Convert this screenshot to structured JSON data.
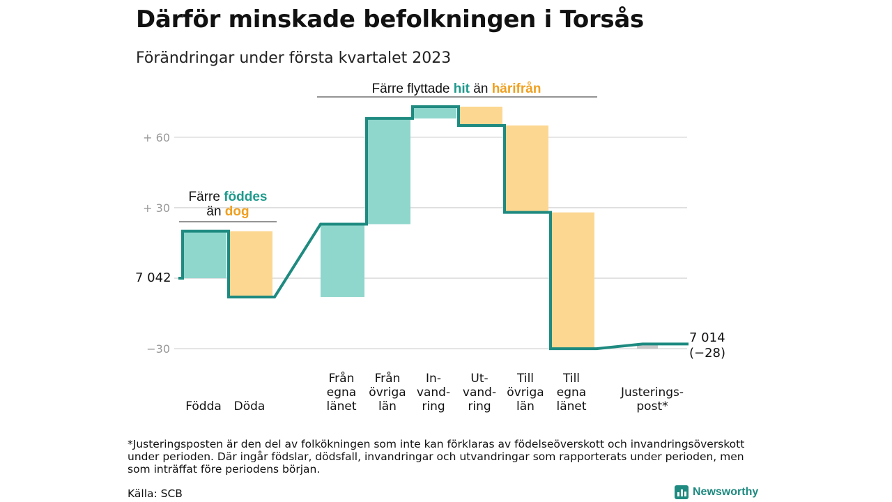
{
  "title": "Därför minskade befolkningen i Torsås",
  "subtitle": "Förändringar under första kvartalet 2023",
  "footnote": "*Justeringsposten är den del av folkökningen som inte kan förklaras av födelseöverskott och invandringsöverskott under perioden. Där ingår födslar, dödsfall, invandringar och utvandringar som rapporterats under perioden, men som inträffat före periodens början.",
  "source": "Källa: SCB",
  "brand": "Newsworthy",
  "colors": {
    "line": "#1e8a80",
    "increase": "#8fd6cd",
    "decrease": "#fcd791",
    "adjustment": "#c8c8c8",
    "accent_teal": "#1e9a8c",
    "accent_orange": "#f0a020",
    "grid": "#d9d9d9",
    "tick": "#999999"
  },
  "chart_data": {
    "type": "waterfall",
    "start_value": 7042,
    "start_label": "7 042",
    "end_value": 7014,
    "end_label": "7 014",
    "end_change_label": "(−28)",
    "y_ticks": [
      {
        "value": 60,
        "label": "+ 60"
      },
      {
        "value": 30,
        "label": "+ 30"
      },
      {
        "value": -30,
        "label": "−30"
      }
    ],
    "ylim": [
      -30,
      73
    ],
    "steps": [
      {
        "label_lines": [
          "Födda"
        ],
        "change": 20
      },
      {
        "label_lines": [
          "Döda"
        ],
        "change": -28
      },
      {
        "label_lines": [
          "Från",
          "egna",
          "länet"
        ],
        "change": 31
      },
      {
        "label_lines": [
          "Från",
          "övriga",
          "län"
        ],
        "change": 45
      },
      {
        "label_lines": [
          "In-",
          "vand-",
          "ring"
        ],
        "change": 5
      },
      {
        "label_lines": [
          "Ut-",
          "vand-",
          "ring"
        ],
        "change": -8
      },
      {
        "label_lines": [
          "Till",
          "övriga",
          "län"
        ],
        "change": -37
      },
      {
        "label_lines": [
          "Till",
          "egna",
          "länet"
        ],
        "change": -58
      },
      {
        "label_lines": [
          "Justerings-",
          "post*"
        ],
        "change": 2
      }
    ],
    "annotations": [
      {
        "lines": [
          [
            {
              "text": "Färre "
            },
            {
              "text": "föddes",
              "color": "teal"
            }
          ],
          [
            {
              "text": "än "
            },
            {
              "text": "dog",
              "color": "orange"
            }
          ]
        ]
      },
      {
        "lines": [
          [
            {
              "text": "Färre flyttade "
            },
            {
              "text": "hit",
              "color": "teal"
            },
            {
              "text": " än "
            },
            {
              "text": "härifrån",
              "color": "orange"
            }
          ]
        ]
      }
    ]
  }
}
